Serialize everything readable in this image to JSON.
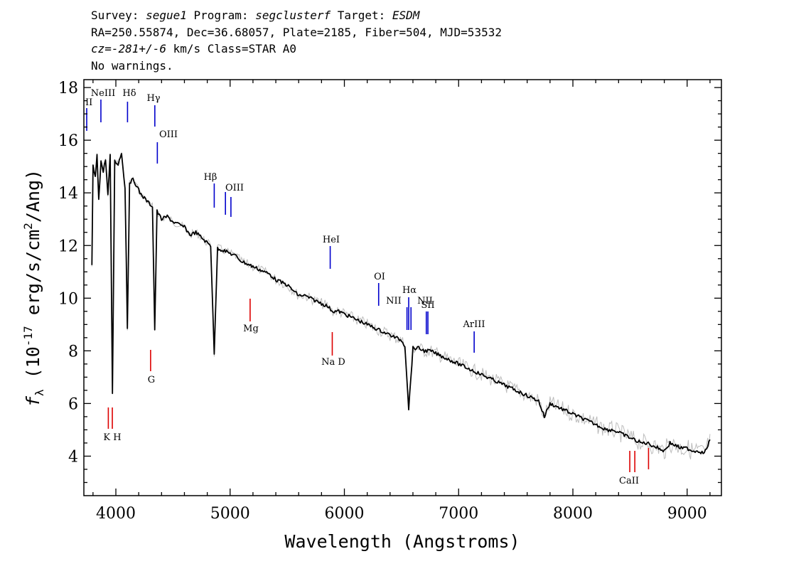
{
  "header": {
    "line1": {
      "survey_label": "Survey: ",
      "survey": "segue1",
      "program_label": " Program: ",
      "program": "segclusterf",
      "target_label": " Target: ",
      "target": "ESDM"
    },
    "line2": "RA=250.55874, Dec=36.68057, Plate=2185, Fiber=504, MJD=53532",
    "line3": {
      "cz": "cz=-281+/-6",
      "rest": " km/s Class=STAR A0"
    },
    "line4": "No warnings."
  },
  "colors": {
    "spectrum": "#000000",
    "error_band": "#bdbdbd",
    "emission_lines": "#0000cc",
    "absorption_lines": "#dd0000"
  },
  "chart_data": {
    "type": "line",
    "xlabel": "Wavelength (Angstroms)",
    "ylabel": "f_λ (10^-17 erg/s/cm^2/Ang)",
    "xlim": [
      3720,
      9300
    ],
    "ylim": [
      2.5,
      18.3
    ],
    "xticks": [
      4000,
      5000,
      6000,
      7000,
      8000,
      9000
    ],
    "yticks": [
      4,
      6,
      8,
      10,
      12,
      14,
      16,
      18
    ],
    "grid": false,
    "series": [
      {
        "x": [
          3790,
          3800,
          3820,
          3835,
          3850,
          3870,
          3890,
          3910,
          3930,
          3950,
          3970,
          3990,
          4020,
          4050,
          4080,
          4101,
          4120,
          4150,
          4180,
          4210,
          4250,
          4290,
          4320,
          4340,
          4360,
          4400,
          4450,
          4500,
          4550,
          4600,
          4650,
          4700,
          4750,
          4800,
          4830,
          4861,
          4890,
          4950,
          5000,
          5050,
          5100,
          5150,
          5200,
          5250,
          5300,
          5350,
          5400,
          5450,
          5500,
          5550,
          5600,
          5650,
          5700,
          5750,
          5800,
          5850,
          5900,
          5950,
          6000,
          6050,
          6100,
          6150,
          6200,
          6250,
          6300,
          6350,
          6400,
          6450,
          6500,
          6530,
          6563,
          6600,
          6650,
          6700,
          6750,
          6800,
          6850,
          6900,
          6950,
          7000,
          7050,
          7100,
          7150,
          7200,
          7250,
          7300,
          7350,
          7400,
          7450,
          7500,
          7550,
          7600,
          7650,
          7700,
          7750,
          7800,
          7850,
          7900,
          7950,
          8000,
          8050,
          8100,
          8150,
          8200,
          8250,
          8300,
          8350,
          8400,
          8450,
          8500,
          8550,
          8600,
          8650,
          8700,
          8750,
          8800,
          8850,
          8900,
          8950,
          9000,
          9050,
          9100,
          9150,
          9200
        ],
        "y": [
          11.2,
          15.0,
          14.6,
          15.4,
          13.8,
          15.2,
          14.8,
          15.3,
          13.9,
          15.4,
          6.4,
          15.2,
          15.1,
          15.5,
          14.2,
          8.9,
          14.4,
          14.5,
          14.3,
          14.0,
          13.8,
          13.6,
          13.5,
          8.8,
          13.3,
          13.0,
          13.1,
          12.9,
          12.8,
          12.7,
          12.4,
          12.5,
          12.3,
          12.1,
          12.0,
          7.9,
          11.9,
          11.8,
          11.7,
          11.6,
          11.4,
          11.3,
          11.2,
          11.1,
          11.0,
          10.9,
          10.7,
          10.6,
          10.5,
          10.3,
          10.1,
          10.1,
          10.0,
          9.9,
          9.8,
          9.7,
          9.5,
          9.5,
          9.4,
          9.3,
          9.2,
          9.1,
          9.0,
          8.9,
          8.8,
          8.7,
          8.6,
          8.5,
          8.4,
          8.2,
          5.8,
          8.1,
          8.1,
          8.0,
          8.0,
          7.9,
          7.8,
          7.7,
          7.6,
          7.5,
          7.4,
          7.3,
          7.2,
          7.1,
          7.0,
          6.9,
          6.8,
          6.7,
          6.6,
          6.5,
          6.4,
          6.3,
          6.2,
          6.1,
          5.5,
          6.0,
          5.9,
          5.8,
          5.7,
          5.6,
          5.5,
          5.4,
          5.3,
          5.2,
          5.1,
          5.0,
          5.0,
          4.9,
          4.8,
          4.7,
          4.6,
          4.5,
          4.5,
          4.4,
          4.3,
          4.2,
          4.5,
          4.4,
          4.3,
          4.3,
          4.2,
          4.2,
          4.1,
          4.6
        ]
      }
    ],
    "spectral_lines": [
      {
        "name": "NeIII",
        "wavelength": 3869,
        "color": "blue"
      },
      {
        "name": "Hδ",
        "wavelength": 4102,
        "color": "blue"
      },
      {
        "name": "Hγ",
        "wavelength": 4341,
        "color": "blue"
      },
      {
        "name": "OIII",
        "wavelength": 4363,
        "color": "blue"
      },
      {
        "name": "Hβ",
        "wavelength": 4861,
        "color": "blue"
      },
      {
        "name": "OIII",
        "wavelength": 4959,
        "color": "blue"
      },
      {
        "name": "OIII",
        "wavelength": 5007,
        "color": "blue"
      },
      {
        "name": "HeI",
        "wavelength": 5876,
        "color": "blue"
      },
      {
        "name": "OI",
        "wavelength": 6300,
        "color": "blue"
      },
      {
        "name": "NII",
        "wavelength": 6548,
        "color": "blue"
      },
      {
        "name": "Hα",
        "wavelength": 6563,
        "color": "blue"
      },
      {
        "name": "NII",
        "wavelength": 6583,
        "color": "blue"
      },
      {
        "name": "SII",
        "wavelength": 6717,
        "color": "blue"
      },
      {
        "name": "SII",
        "wavelength": 6731,
        "color": "blue"
      },
      {
        "name": "ArIII",
        "wavelength": 7136,
        "color": "blue"
      },
      {
        "name": "K",
        "wavelength": 3934,
        "color": "red"
      },
      {
        "name": "H",
        "wavelength": 3969,
        "color": "red"
      },
      {
        "name": "G",
        "wavelength": 4304,
        "color": "red"
      },
      {
        "name": "Mg",
        "wavelength": 5175,
        "color": "red"
      },
      {
        "name": "Na D",
        "wavelength": 5894,
        "color": "red"
      },
      {
        "name": "CaII",
        "wavelength": 8498,
        "color": "red"
      },
      {
        "name": "CaII",
        "wavelength": 8542,
        "color": "red"
      },
      {
        "name": "CaII",
        "wavelength": 8662,
        "color": "red"
      }
    ],
    "line_label_texts": {
      "edge_ii": "II",
      "neiii": "NeIII",
      "hdelta": "Hδ",
      "hgamma": "Hγ",
      "oiii_a": "OIII",
      "hbeta": "Hβ",
      "oiii_b": "OIII",
      "hei": "HeI",
      "oi": "OI",
      "nii_a": "NII",
      "halpha": "Hα",
      "nii_b": "NII",
      "sii": "SII",
      "ariii": "ArIII",
      "kh": "K H",
      "g": "G",
      "mg": "Mg",
      "nad": "Na D",
      "caii": "CaII"
    }
  }
}
